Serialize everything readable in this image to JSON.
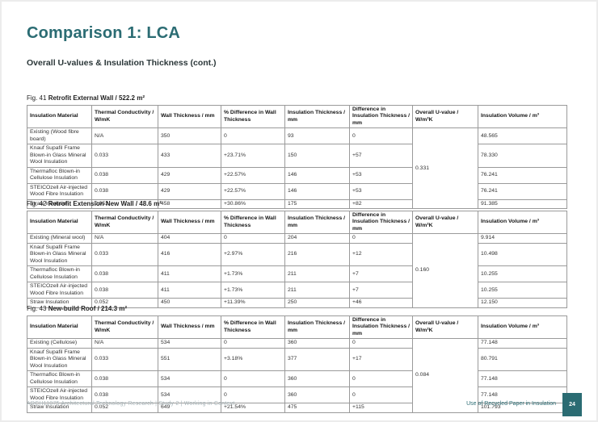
{
  "page": {
    "title": "Comparison 1: LCA",
    "subtitle": "Overall U-values & Insulation Thickness (cont.)",
    "footer_left": "ARCH11075 Architectural Technology Research | Study 2 | Working in Context",
    "footer_right": "Use of Recycled Paper in Insulation",
    "page_number": "24",
    "accent_color": "#2B6C73",
    "footer_muted_color": "#A9B6BA"
  },
  "table_headers": [
    "Insulation Material",
    "Thermal Conductivity / W/mK",
    "Wall Thickness / mm",
    "% Difference in Wall Thickness",
    "Insulation Thickness / mm",
    "Difference in Insulation Thickness / mm",
    "Overall U-value / W/m²K",
    "Insulation Volume / m³"
  ],
  "tables": [
    {
      "fig_label": "Fig. 41",
      "caption": "Retrofit External Wall / 522.2 m²",
      "overall_u_value": "0.331",
      "rows": [
        {
          "material": "Existing (Wood fibre board)",
          "thermal_conductivity": "N/A",
          "wall_thickness": "350",
          "wall_thickness_diff": "0",
          "insulation_thickness": "93",
          "insulation_thickness_diff": "0",
          "insulation_volume": "48.565"
        },
        {
          "material": "Knauf Supafil Frame Blown-in Glass Mineral Wool Insulation",
          "thermal_conductivity": "0.033",
          "wall_thickness": "433",
          "wall_thickness_diff": "+23.71%",
          "insulation_thickness": "150",
          "insulation_thickness_diff": "+57",
          "insulation_volume": "78.330"
        },
        {
          "material": "Thermafloc Blown-in Cellulose Insulation",
          "thermal_conductivity": "0.038",
          "wall_thickness": "429",
          "wall_thickness_diff": "+22.57%",
          "insulation_thickness": "146",
          "insulation_thickness_diff": "+53",
          "insulation_volume": "76.241"
        },
        {
          "material": "STEICOzell Air-injected Wood Fibre Insulation",
          "thermal_conductivity": "0.038",
          "wall_thickness": "429",
          "wall_thickness_diff": "+22.57%",
          "insulation_thickness": "146",
          "insulation_thickness_diff": "+53",
          "insulation_volume": "76.241"
        },
        {
          "material": "Straw Insulation",
          "thermal_conductivity": "0.052",
          "wall_thickness": "458",
          "wall_thickness_diff": "+30.86%",
          "insulation_thickness": "175",
          "insulation_thickness_diff": "+82",
          "insulation_volume": "91.385"
        }
      ]
    },
    {
      "fig_label": "Fig. 42",
      "caption": "Retrofit Extension New Wall / 48.6 m²",
      "overall_u_value": "0.160",
      "rows": [
        {
          "material": "Existing (Mineral wool)",
          "thermal_conductivity": "N/A",
          "wall_thickness": "404",
          "wall_thickness_diff": "0",
          "insulation_thickness": "204",
          "insulation_thickness_diff": "0",
          "insulation_volume": "9.914"
        },
        {
          "material": "Knauf Supafil Frame Blown-in Glass Mineral Wool Insulation",
          "thermal_conductivity": "0.033",
          "wall_thickness": "416",
          "wall_thickness_diff": "+2.97%",
          "insulation_thickness": "216",
          "insulation_thickness_diff": "+12",
          "insulation_volume": "10.498"
        },
        {
          "material": "Thermafloc Blown-in Cellulose Insulation",
          "thermal_conductivity": "0.038",
          "wall_thickness": "411",
          "wall_thickness_diff": "+1.73%",
          "insulation_thickness": "211",
          "insulation_thickness_diff": "+7",
          "insulation_volume": "10.255"
        },
        {
          "material": "STEICOzell Air-injected Wood Fibre Insulation",
          "thermal_conductivity": "0.038",
          "wall_thickness": "411",
          "wall_thickness_diff": "+1.73%",
          "insulation_thickness": "211",
          "insulation_thickness_diff": "+7",
          "insulation_volume": "10.255"
        },
        {
          "material": "Straw Insulation",
          "thermal_conductivity": "0.052",
          "wall_thickness": "450",
          "wall_thickness_diff": "+11.39%",
          "insulation_thickness": "250",
          "insulation_thickness_diff": "+46",
          "insulation_volume": "12.150"
        }
      ]
    },
    {
      "fig_label": "Fig. 43",
      "caption": "New-build Roof / 214.3 m²",
      "overall_u_value": "0.084",
      "rows": [
        {
          "material": "Existing (Cellulose)",
          "thermal_conductivity": "N/A",
          "wall_thickness": "534",
          "wall_thickness_diff": "0",
          "insulation_thickness": "360",
          "insulation_thickness_diff": "0",
          "insulation_volume": "77.148"
        },
        {
          "material": "Knauf Supafil Frame Blown-in Glass Mineral Wool Insulation",
          "thermal_conductivity": "0.033",
          "wall_thickness": "551",
          "wall_thickness_diff": "+3.18%",
          "insulation_thickness": "377",
          "insulation_thickness_diff": "+17",
          "insulation_volume": "80.791"
        },
        {
          "material": "Thermafloc Blown-in Cellulose Insulation",
          "thermal_conductivity": "0.038",
          "wall_thickness": "534",
          "wall_thickness_diff": "0",
          "insulation_thickness": "360",
          "insulation_thickness_diff": "0",
          "insulation_volume": "77.148"
        },
        {
          "material": "STEICOzell Air-injected Wood Fibre Insulation",
          "thermal_conductivity": "0.038",
          "wall_thickness": "534",
          "wall_thickness_diff": "0",
          "insulation_thickness": "360",
          "insulation_thickness_diff": "0",
          "insulation_volume": "77.148"
        },
        {
          "material": "Straw Insulation",
          "thermal_conductivity": "0.052",
          "wall_thickness": "649",
          "wall_thickness_diff": "+21.54%",
          "insulation_thickness": "475",
          "insulation_thickness_diff": "+115",
          "insulation_volume": "101.793"
        }
      ]
    }
  ]
}
